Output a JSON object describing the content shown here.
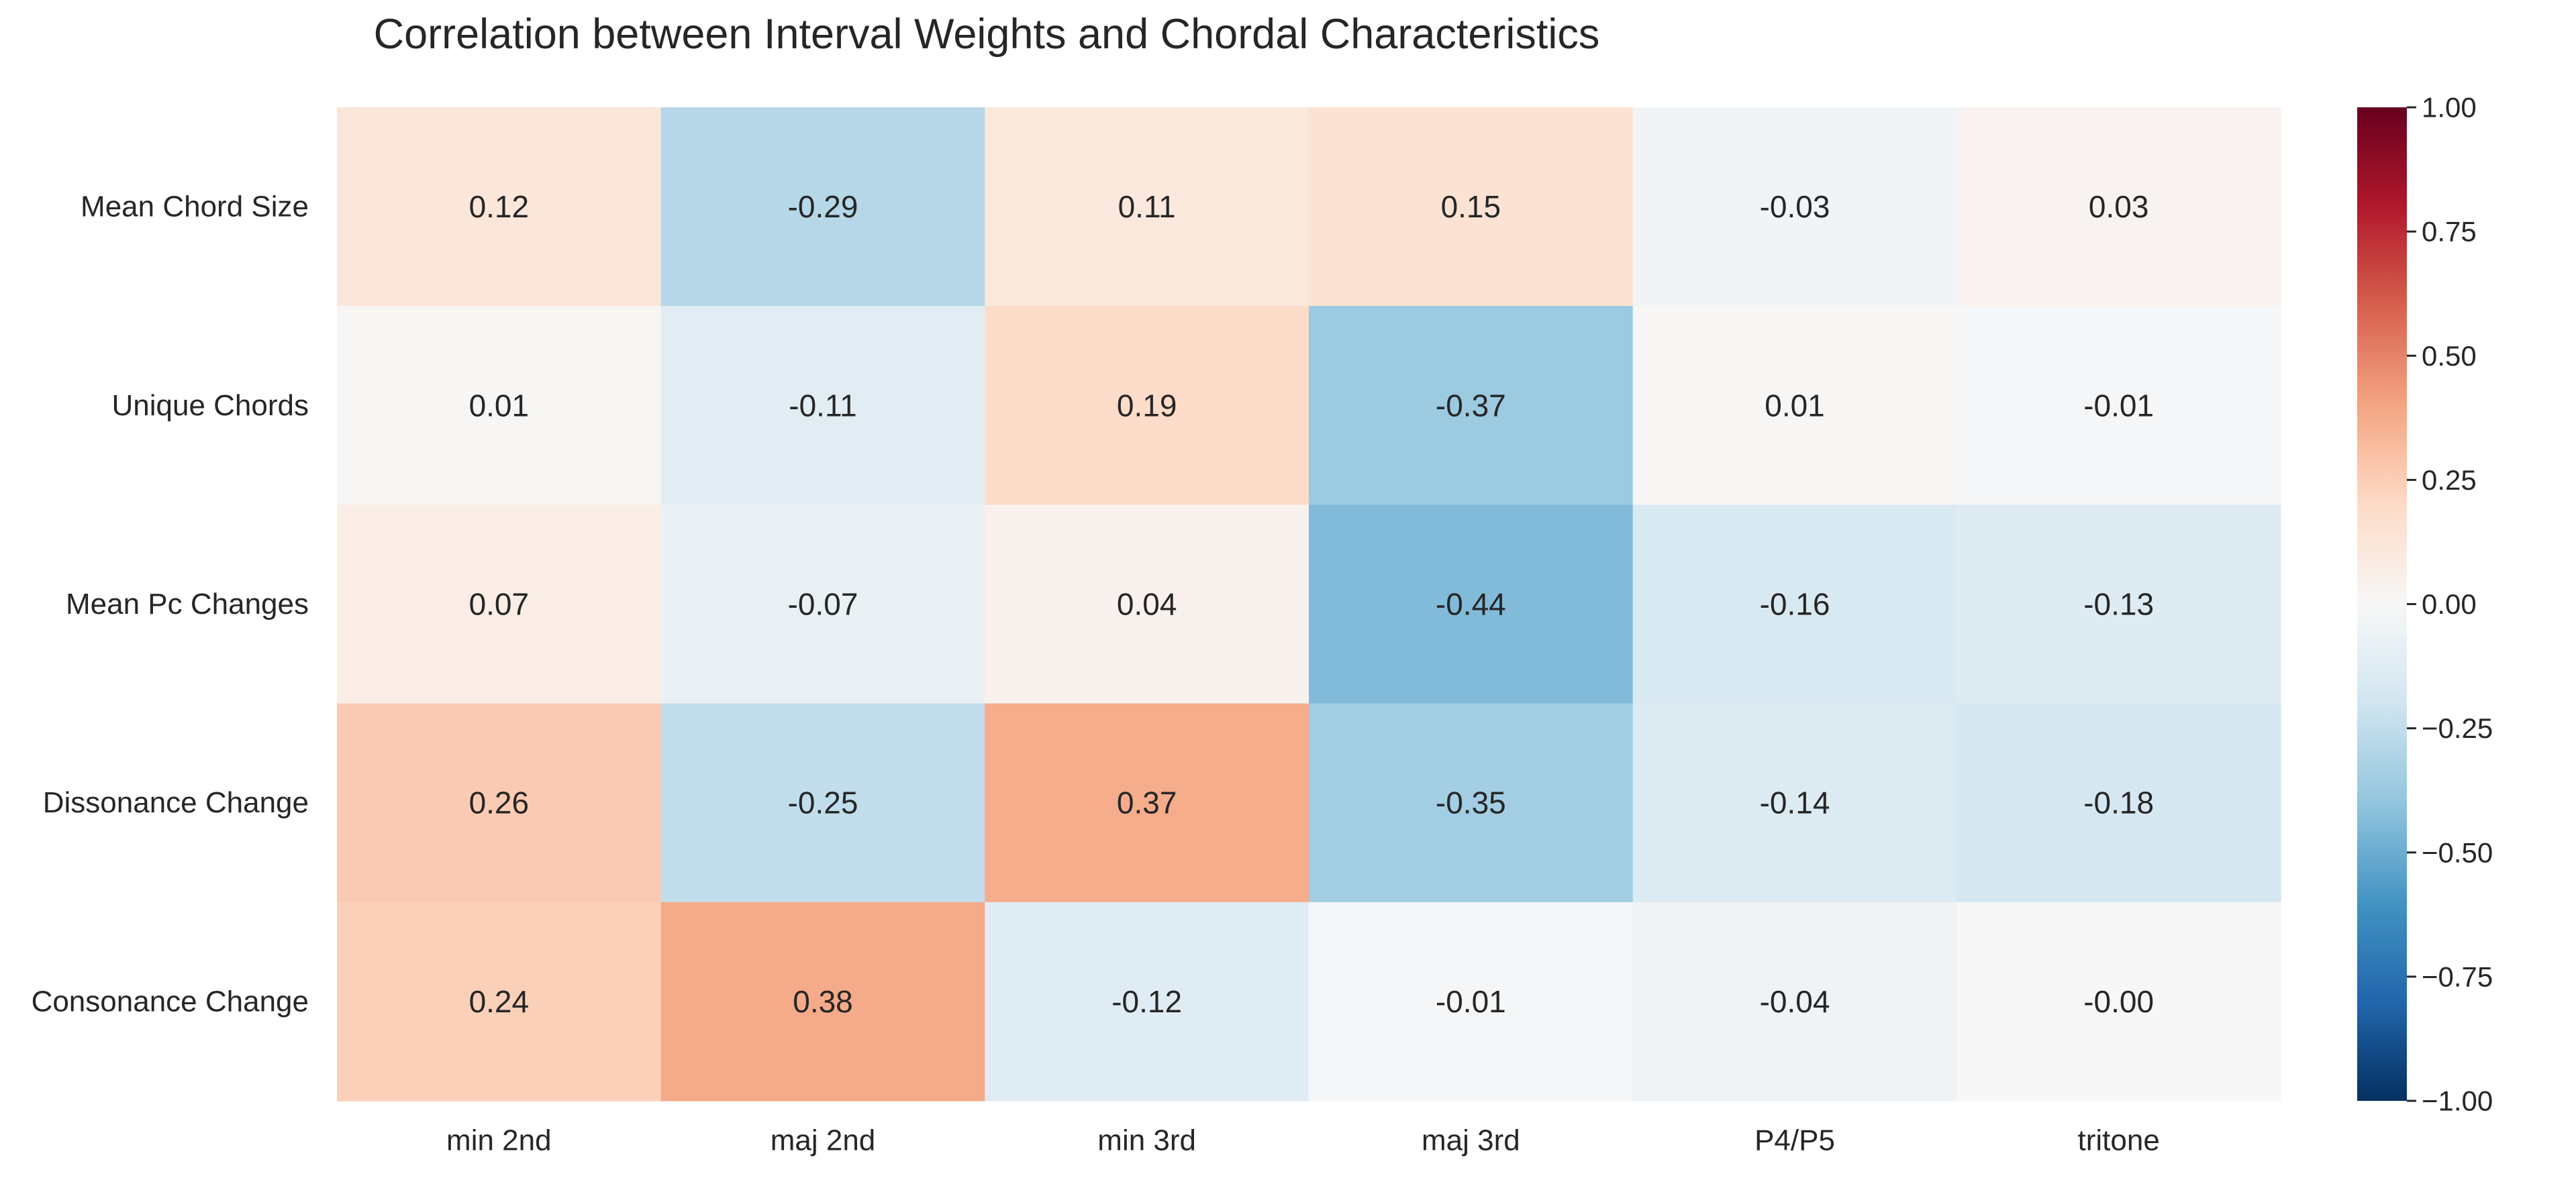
{
  "chart_data": {
    "type": "heatmap",
    "title": "Correlation between Interval Weights and Chordal Characteristics",
    "xlabel": "",
    "ylabel": "",
    "x_categories": [
      "min 2nd",
      "maj 2nd",
      "min 3rd",
      "maj 3rd",
      "P4/P5",
      "tritone"
    ],
    "y_categories": [
      "Mean Chord Size",
      "Unique Chords",
      "Mean Pc Changes",
      "Dissonance Change",
      "Consonance Change"
    ],
    "values": [
      [
        0.12,
        -0.29,
        0.11,
        0.15,
        -0.03,
        0.03
      ],
      [
        0.01,
        -0.11,
        0.19,
        -0.37,
        0.01,
        -0.01
      ],
      [
        0.07,
        -0.07,
        0.04,
        -0.44,
        -0.16,
        -0.13
      ],
      [
        0.26,
        -0.25,
        0.37,
        -0.35,
        -0.14,
        -0.18
      ],
      [
        0.24,
        0.38,
        -0.12,
        -0.01,
        -0.04,
        -0.0
      ]
    ],
    "value_labels": [
      [
        "0.12",
        "-0.29",
        "0.11",
        "0.15",
        "-0.03",
        "0.03"
      ],
      [
        "0.01",
        "-0.11",
        "0.19",
        "-0.37",
        "0.01",
        "-0.01"
      ],
      [
        "0.07",
        "-0.07",
        "0.04",
        "-0.44",
        "-0.16",
        "-0.13"
      ],
      [
        "0.26",
        "-0.25",
        "0.37",
        "-0.35",
        "-0.14",
        "-0.18"
      ],
      [
        "0.24",
        "0.38",
        "-0.12",
        "-0.01",
        "-0.04",
        "-0.00"
      ]
    ],
    "colormap": "RdBu_r",
    "vmin": -1.0,
    "vmax": 1.0,
    "colorbar_ticks": [
      1.0,
      0.75,
      0.5,
      0.25,
      0.0,
      -0.25,
      -0.5,
      -0.75,
      -1.0
    ],
    "colorbar_tick_labels": [
      "1.00",
      "0.75",
      "0.50",
      "0.25",
      "0.00",
      "−0.25",
      "−0.50",
      "−0.75",
      "−1.00"
    ],
    "colorbar_placement": "right",
    "grid": false
  }
}
